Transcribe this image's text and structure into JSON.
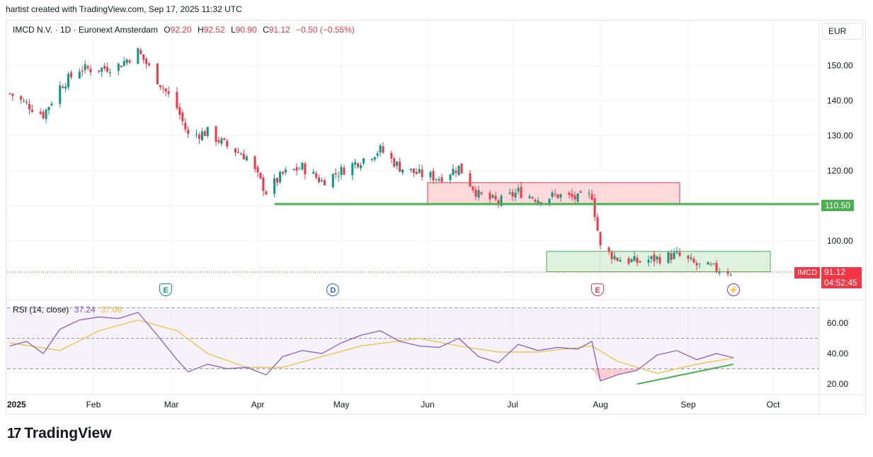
{
  "caption": "hartist created with TradingView.com, Sep 17, 2025 11:32 UTC",
  "legend": {
    "symbol": "IMCD N.V. · 1D · Euronext Amsterdam",
    "o_label": "O",
    "o_value": "92.20",
    "h_label": "H",
    "h_value": "92.52",
    "l_label": "L",
    "l_value": "90.90",
    "c_label": "C",
    "c_value": "91.12",
    "change": "−0.50 (−0.55%)"
  },
  "currency": "EUR",
  "level_badge": "110.50",
  "price_badge": {
    "price": "91.12",
    "countdown": "04:52:45"
  },
  "symbol_tag": "IMCD",
  "rsi_legend": {
    "name": "RSI (14, close)",
    "rsi_value": "37.24",
    "ma_value": "37.06"
  },
  "events": [
    {
      "icon": "earnings-icon",
      "glyph": "E",
      "date": "2025-02-27",
      "color": "#089981"
    },
    {
      "icon": "dividend-icon",
      "glyph": "D",
      "date": "2025-04-28",
      "color": "#2962ff"
    },
    {
      "icon": "earnings-icon",
      "glyph": "E",
      "date": "2025-07-31",
      "color": "#f23645"
    },
    {
      "icon": "split-icon",
      "glyph": "⚡",
      "date": "2025-09-17",
      "color": "#9c27b0"
    }
  ],
  "logo": "TradingView",
  "colors": {
    "up": "#089981",
    "down": "#f23645",
    "rsi": "#7e57c2",
    "rsi_ma": "#f0c030",
    "level": "#4caf50"
  },
  "chart_data": [
    {
      "type": "candlestick",
      "title": "IMCD N.V. · 1D · Euronext Amsterdam",
      "y_ticks": [
        "150.00",
        "140.00",
        "130.00",
        "120.00",
        "110.00",
        "100.00"
      ],
      "x_ticks": [
        "2025",
        "Feb",
        "Mar",
        "Apr",
        "May",
        "Jun",
        "Jul",
        "Aug",
        "Sep",
        "Oct"
      ],
      "grid": true,
      "closes": [
        {
          "date": "2025-01-02",
          "close": 142
        },
        {
          "date": "2025-01-08",
          "close": 139
        },
        {
          "date": "2025-01-14",
          "close": 136
        },
        {
          "date": "2025-01-20",
          "close": 144
        },
        {
          "date": "2025-01-27",
          "close": 149
        },
        {
          "date": "2025-02-03",
          "close": 149
        },
        {
          "date": "2025-02-10",
          "close": 150
        },
        {
          "date": "2025-02-17",
          "close": 154
        },
        {
          "date": "2025-02-24",
          "close": 146
        },
        {
          "date": "2025-03-03",
          "close": 138
        },
        {
          "date": "2025-03-07",
          "close": 130
        },
        {
          "date": "2025-03-14",
          "close": 131
        },
        {
          "date": "2025-03-21",
          "close": 127
        },
        {
          "date": "2025-03-28",
          "close": 124
        },
        {
          "date": "2025-04-04",
          "close": 114
        },
        {
          "date": "2025-04-10",
          "close": 119
        },
        {
          "date": "2025-04-17",
          "close": 121
        },
        {
          "date": "2025-04-24",
          "close": 117
        },
        {
          "date": "2025-05-01",
          "close": 120
        },
        {
          "date": "2025-05-08",
          "close": 123
        },
        {
          "date": "2025-05-15",
          "close": 126
        },
        {
          "date": "2025-05-22",
          "close": 121
        },
        {
          "date": "2025-05-29",
          "close": 119
        },
        {
          "date": "2025-06-05",
          "close": 118
        },
        {
          "date": "2025-06-12",
          "close": 121
        },
        {
          "date": "2025-06-19",
          "close": 113
        },
        {
          "date": "2025-06-26",
          "close": 111
        },
        {
          "date": "2025-07-03",
          "close": 114
        },
        {
          "date": "2025-07-10",
          "close": 112
        },
        {
          "date": "2025-07-17",
          "close": 113
        },
        {
          "date": "2025-07-24",
          "close": 112
        },
        {
          "date": "2025-07-29",
          "close": 113
        },
        {
          "date": "2025-08-01",
          "close": 98
        },
        {
          "date": "2025-08-07",
          "close": 95
        },
        {
          "date": "2025-08-14",
          "close": 94
        },
        {
          "date": "2025-08-21",
          "close": 95
        },
        {
          "date": "2025-08-28",
          "close": 96
        },
        {
          "date": "2025-09-04",
          "close": 93
        },
        {
          "date": "2025-09-11",
          "close": 92
        },
        {
          "date": "2025-09-17",
          "close": 91.12
        }
      ],
      "horizontal_level": 110.5,
      "zones": [
        {
          "color": "red",
          "from": "2025-06-01",
          "to": "2025-08-29",
          "low": 110.7,
          "high": 116.6
        },
        {
          "color": "green",
          "from": "2025-07-13",
          "to": "2025-09-30",
          "low": 91.2,
          "high": 97.0
        }
      ],
      "last_price": 91.12
    },
    {
      "type": "line",
      "title": "RSI (14, close)",
      "y_ticks": [
        "60.00",
        "40.00",
        "20.00"
      ],
      "levels": [
        70,
        50,
        30
      ],
      "series": [
        {
          "name": "RSI",
          "points": [
            {
              "date": "2025-01-02",
              "value": 45
            },
            {
              "date": "2025-01-08",
              "value": 48
            },
            {
              "date": "2025-01-14",
              "value": 40
            },
            {
              "date": "2025-01-20",
              "value": 56
            },
            {
              "date": "2025-01-27",
              "value": 62
            },
            {
              "date": "2025-02-03",
              "value": 64
            },
            {
              "date": "2025-02-10",
              "value": 63
            },
            {
              "date": "2025-02-17",
              "value": 67
            },
            {
              "date": "2025-02-24",
              "value": 52
            },
            {
              "date": "2025-03-03",
              "value": 36
            },
            {
              "date": "2025-03-07",
              "value": 28
            },
            {
              "date": "2025-03-14",
              "value": 33
            },
            {
              "date": "2025-03-21",
              "value": 30
            },
            {
              "date": "2025-03-28",
              "value": 31
            },
            {
              "date": "2025-04-04",
              "value": 26
            },
            {
              "date": "2025-04-10",
              "value": 38
            },
            {
              "date": "2025-04-17",
              "value": 42
            },
            {
              "date": "2025-04-24",
              "value": 40
            },
            {
              "date": "2025-05-01",
              "value": 47
            },
            {
              "date": "2025-05-08",
              "value": 52
            },
            {
              "date": "2025-05-15",
              "value": 55
            },
            {
              "date": "2025-05-22",
              "value": 48
            },
            {
              "date": "2025-05-29",
              "value": 45
            },
            {
              "date": "2025-06-05",
              "value": 44
            },
            {
              "date": "2025-06-12",
              "value": 50
            },
            {
              "date": "2025-06-19",
              "value": 38
            },
            {
              "date": "2025-06-26",
              "value": 34
            },
            {
              "date": "2025-07-03",
              "value": 46
            },
            {
              "date": "2025-07-10",
              "value": 42
            },
            {
              "date": "2025-07-17",
              "value": 44
            },
            {
              "date": "2025-07-24",
              "value": 43
            },
            {
              "date": "2025-07-29",
              "value": 48
            },
            {
              "date": "2025-08-01",
              "value": 22
            },
            {
              "date": "2025-08-07",
              "value": 26
            },
            {
              "date": "2025-08-14",
              "value": 29
            },
            {
              "date": "2025-08-21",
              "value": 39
            },
            {
              "date": "2025-08-28",
              "value": 42
            },
            {
              "date": "2025-09-04",
              "value": 36
            },
            {
              "date": "2025-09-11",
              "value": 40
            },
            {
              "date": "2025-09-17",
              "value": 37.24
            }
          ]
        },
        {
          "name": "RSI-based MA",
          "points": [
            {
              "date": "2025-01-02",
              "value": 47
            },
            {
              "date": "2025-01-20",
              "value": 42
            },
            {
              "date": "2025-02-03",
              "value": 55
            },
            {
              "date": "2025-02-17",
              "value": 62
            },
            {
              "date": "2025-03-03",
              "value": 55
            },
            {
              "date": "2025-03-14",
              "value": 40
            },
            {
              "date": "2025-03-28",
              "value": 31
            },
            {
              "date": "2025-04-10",
              "value": 31
            },
            {
              "date": "2025-04-24",
              "value": 38
            },
            {
              "date": "2025-05-08",
              "value": 45
            },
            {
              "date": "2025-05-29",
              "value": 50
            },
            {
              "date": "2025-06-12",
              "value": 45
            },
            {
              "date": "2025-06-26",
              "value": 41
            },
            {
              "date": "2025-07-10",
              "value": 41
            },
            {
              "date": "2025-07-29",
              "value": 45
            },
            {
              "date": "2025-08-07",
              "value": 35
            },
            {
              "date": "2025-08-21",
              "value": 27
            },
            {
              "date": "2025-09-04",
              "value": 33
            },
            {
              "date": "2025-09-17",
              "value": 37.06
            }
          ]
        }
      ],
      "trendline": {
        "from": {
          "date": "2025-08-14",
          "value": 20
        },
        "to": {
          "date": "2025-09-17",
          "value": 33
        }
      }
    }
  ]
}
